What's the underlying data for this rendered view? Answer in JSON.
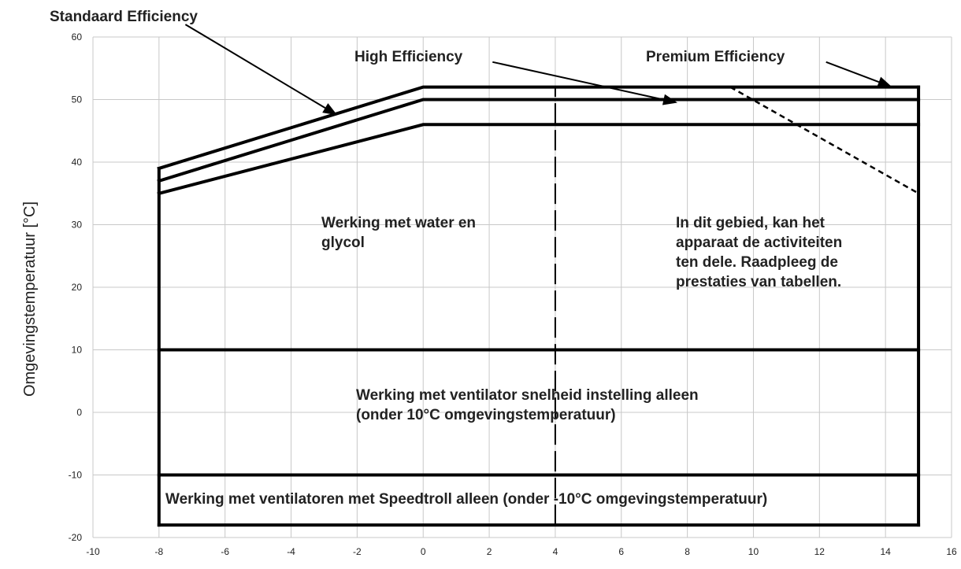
{
  "chart_data": {
    "type": "line",
    "ylabel": "Omgevingstemperatuur [°C]",
    "xlabel": "",
    "xlim": [
      -10,
      16
    ],
    "ylim": [
      -20,
      60
    ],
    "x_ticks": [
      -10,
      -8,
      -6,
      -4,
      -2,
      0,
      2,
      4,
      6,
      8,
      10,
      12,
      14,
      16
    ],
    "y_ticks": [
      -20,
      -10,
      0,
      10,
      20,
      30,
      40,
      50,
      60
    ],
    "grid": true,
    "series": [
      {
        "name": "Standaard Efficiency",
        "x": [
          -8,
          0,
          15
        ],
        "y": [
          39,
          52,
          52
        ],
        "style": "solid"
      },
      {
        "name": "High Efficiency",
        "x": [
          -8,
          0,
          15
        ],
        "y": [
          37,
          50,
          50
        ],
        "style": "solid"
      },
      {
        "name": "Premium Efficiency",
        "x": [
          -8,
          0,
          15
        ],
        "y": [
          35,
          46,
          46
        ],
        "style": "solid"
      }
    ],
    "boundaries": [
      {
        "name": "left-boundary",
        "x": [
          -8,
          -8
        ],
        "y": [
          -18,
          39
        ]
      },
      {
        "name": "right-boundary",
        "x": [
          15,
          15
        ],
        "y": [
          -18,
          52
        ]
      },
      {
        "name": "bottom-boundary",
        "x": [
          -8,
          15
        ],
        "y": [
          -18,
          -18
        ]
      },
      {
        "name": "line-10",
        "x": [
          -8,
          15
        ],
        "y": [
          10,
          10
        ]
      },
      {
        "name": "line-minus-10",
        "x": [
          -8,
          15
        ],
        "y": [
          -10,
          -10
        ]
      }
    ],
    "reference_lines": [
      {
        "name": "dashed-vertical",
        "x": [
          4,
          4
        ],
        "y": [
          -18,
          52
        ],
        "style": "long-dash"
      },
      {
        "name": "dashed-diagonal",
        "x": [
          9.3,
          15
        ],
        "y": [
          52,
          35
        ],
        "style": "short-dash"
      }
    ],
    "series_labels": [
      {
        "text": "Standaard Efficiency",
        "arrow_from": [
          -7.2,
          62
        ],
        "arrow_to": [
          -2.6,
          47.5
        ]
      },
      {
        "text": "High Efficiency",
        "arrow_from": [
          2.1,
          56
        ],
        "arrow_to": [
          7.7,
          49.5
        ]
      },
      {
        "text": "Premium Efficiency",
        "arrow_from": [
          12.2,
          56
        ],
        "arrow_to": [
          14.2,
          52
        ]
      }
    ],
    "annotations": [
      {
        "name": "annotation-water-glycol",
        "lines": [
          "Werking met water en",
          "glycol"
        ]
      },
      {
        "name": "annotation-partial-area",
        "lines": [
          "In dit gebied, kan het",
          "apparaat de activiteiten",
          "ten dele. Raadpleeg de",
          "prestaties van tabellen."
        ]
      },
      {
        "name": "annotation-fan-speed",
        "lines": [
          "Werking met ventilator snelheid instelling alleen",
          "(onder 10°C omgevingstemperatuur)"
        ]
      },
      {
        "name": "annotation-speedtroll",
        "lines": [
          "Werking met ventilatoren met Speedtroll alleen (onder -10°C omgevingstemperatuur)"
        ]
      }
    ]
  }
}
